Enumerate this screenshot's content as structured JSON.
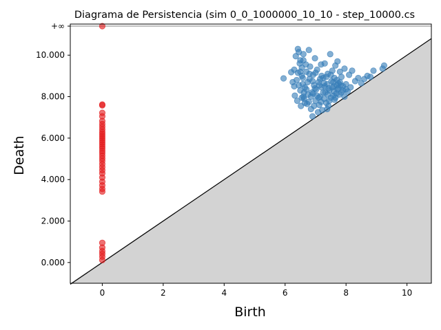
{
  "chart_data": {
    "type": "scatter",
    "title": "Diagrama de Persistencia (sim 0_0_1000000_10_10 - step_10000.cs",
    "xlabel": "Birth",
    "ylabel": "Death",
    "xlim": [
      -1.05,
      10.8
    ],
    "ylim": [
      -1.0,
      11.5
    ],
    "infinity_value": 11.4,
    "infinity_label": "+∞",
    "x_ticks": [
      0,
      2,
      4,
      6,
      8,
      10
    ],
    "x_tick_labels": [
      "0",
      "2",
      "4",
      "6",
      "8",
      "10"
    ],
    "y_ticks": [
      0,
      2,
      4,
      6,
      8,
      10
    ],
    "y_tick_labels": [
      "0.000",
      "2.000",
      "4.000",
      "6.000",
      "8.000",
      "10.000"
    ],
    "colors": {
      "h0": "#e41a1c",
      "h1": "#377eb8",
      "diagonal_fill": "#d3d3d3",
      "diagonal_line": "#000000",
      "infinity_line": "#808080"
    },
    "grid": false,
    "legend": "none",
    "series": [
      {
        "color": "#e41a1c",
        "points": [
          {
            "x": 0.0,
            "y": 0.12
          },
          {
            "x": 0.0,
            "y": 0.28
          },
          {
            "x": 0.0,
            "y": 0.42
          },
          {
            "x": 0.0,
            "y": 0.55
          },
          {
            "x": 0.0,
            "y": 0.72
          },
          {
            "x": 0.0,
            "y": 0.95
          },
          {
            "x": 0.0,
            "y": 3.42
          },
          {
            "x": 0.0,
            "y": 3.55
          },
          {
            "x": 0.0,
            "y": 3.72
          },
          {
            "x": 0.0,
            "y": 3.9
          },
          {
            "x": 0.0,
            "y": 4.1
          },
          {
            "x": 0.0,
            "y": 4.3
          },
          {
            "x": 0.0,
            "y": 4.45
          },
          {
            "x": 0.0,
            "y": 4.6
          },
          {
            "x": 0.0,
            "y": 4.75
          },
          {
            "x": 0.0,
            "y": 4.9
          },
          {
            "x": 0.0,
            "y": 5.02
          },
          {
            "x": 0.0,
            "y": 5.15
          },
          {
            "x": 0.0,
            "y": 5.27
          },
          {
            "x": 0.0,
            "y": 5.38
          },
          {
            "x": 0.0,
            "y": 5.5
          },
          {
            "x": 0.0,
            "y": 5.6
          },
          {
            "x": 0.0,
            "y": 5.7
          },
          {
            "x": 0.0,
            "y": 5.8
          },
          {
            "x": 0.0,
            "y": 5.9
          },
          {
            "x": 0.0,
            "y": 6.0
          },
          {
            "x": 0.0,
            "y": 6.1
          },
          {
            "x": 0.0,
            "y": 6.2
          },
          {
            "x": 0.0,
            "y": 6.3
          },
          {
            "x": 0.0,
            "y": 6.42
          },
          {
            "x": 0.0,
            "y": 6.55
          },
          {
            "x": 0.0,
            "y": 6.68
          },
          {
            "x": 0.0,
            "y": 6.82
          },
          {
            "x": 0.0,
            "y": 7.05
          },
          {
            "x": 0.0,
            "y": 7.22
          },
          {
            "x": 0.0,
            "y": 7.58
          },
          {
            "x": 0.0,
            "y": 7.62
          },
          {
            "x": 0.0,
            "y": 11.4
          }
        ]
      },
      {
        "color": "#377eb8",
        "points": [
          {
            "x": 5.95,
            "y": 8.88
          },
          {
            "x": 6.2,
            "y": 9.18
          },
          {
            "x": 6.25,
            "y": 8.7
          },
          {
            "x": 6.3,
            "y": 9.3
          },
          {
            "x": 6.32,
            "y": 8.05
          },
          {
            "x": 6.35,
            "y": 9.95
          },
          {
            "x": 6.4,
            "y": 7.8
          },
          {
            "x": 6.42,
            "y": 10.3
          },
          {
            "x": 6.45,
            "y": 10.15
          },
          {
            "x": 6.48,
            "y": 9.6
          },
          {
            "x": 6.5,
            "y": 8.3
          },
          {
            "x": 6.52,
            "y": 7.55
          },
          {
            "x": 6.55,
            "y": 9.0
          },
          {
            "x": 6.58,
            "y": 8.6
          },
          {
            "x": 6.6,
            "y": 9.75
          },
          {
            "x": 6.62,
            "y": 7.9
          },
          {
            "x": 6.65,
            "y": 8.45
          },
          {
            "x": 6.7,
            "y": 9.2
          },
          {
            "x": 6.72,
            "y": 7.65
          },
          {
            "x": 6.75,
            "y": 8.1
          },
          {
            "x": 6.78,
            "y": 10.25
          },
          {
            "x": 6.8,
            "y": 8.85
          },
          {
            "x": 6.82,
            "y": 9.45
          },
          {
            "x": 6.85,
            "y": 7.4
          },
          {
            "x": 6.88,
            "y": 8.2
          },
          {
            "x": 6.9,
            "y": 7.05
          },
          {
            "x": 6.92,
            "y": 9.05
          },
          {
            "x": 6.95,
            "y": 8.55
          },
          {
            "x": 6.98,
            "y": 9.85
          },
          {
            "x": 7.0,
            "y": 7.8
          },
          {
            "x": 7.02,
            "y": 8.35
          },
          {
            "x": 7.05,
            "y": 9.3
          },
          {
            "x": 7.08,
            "y": 7.25
          },
          {
            "x": 7.1,
            "y": 8.7
          },
          {
            "x": 7.12,
            "y": 7.6
          },
          {
            "x": 7.15,
            "y": 8.0
          },
          {
            "x": 7.18,
            "y": 9.55
          },
          {
            "x": 7.2,
            "y": 8.45
          },
          {
            "x": 7.22,
            "y": 7.35
          },
          {
            "x": 7.25,
            "y": 8.9
          },
          {
            "x": 7.28,
            "y": 7.9
          },
          {
            "x": 7.3,
            "y": 9.6
          },
          {
            "x": 7.32,
            "y": 8.2
          },
          {
            "x": 7.35,
            "y": 7.7
          },
          {
            "x": 7.38,
            "y": 8.6
          },
          {
            "x": 7.4,
            "y": 9.1
          },
          {
            "x": 7.42,
            "y": 7.55
          },
          {
            "x": 7.45,
            "y": 8.3
          },
          {
            "x": 7.48,
            "y": 10.05
          },
          {
            "x": 7.5,
            "y": 7.95
          },
          {
            "x": 7.52,
            "y": 8.75
          },
          {
            "x": 7.55,
            "y": 9.25
          },
          {
            "x": 7.58,
            "y": 8.05
          },
          {
            "x": 7.6,
            "y": 8.5
          },
          {
            "x": 7.62,
            "y": 7.85
          },
          {
            "x": 7.65,
            "y": 9.5
          },
          {
            "x": 7.68,
            "y": 8.15
          },
          {
            "x": 7.7,
            "y": 8.8
          },
          {
            "x": 7.72,
            "y": 9.7
          },
          {
            "x": 7.75,
            "y": 8.4
          },
          {
            "x": 7.78,
            "y": 8.1
          },
          {
            "x": 7.8,
            "y": 9.2
          },
          {
            "x": 7.82,
            "y": 8.55
          },
          {
            "x": 7.85,
            "y": 8.95
          },
          {
            "x": 7.9,
            "y": 8.3
          },
          {
            "x": 7.95,
            "y": 9.35
          },
          {
            "x": 8.0,
            "y": 8.6
          },
          {
            "x": 8.05,
            "y": 8.25
          },
          {
            "x": 8.1,
            "y": 9.05
          },
          {
            "x": 8.15,
            "y": 8.45
          },
          {
            "x": 8.2,
            "y": 9.25
          },
          {
            "x": 8.3,
            "y": 8.75
          },
          {
            "x": 8.4,
            "y": 8.9
          },
          {
            "x": 8.5,
            "y": 8.65
          },
          {
            "x": 8.6,
            "y": 8.85
          },
          {
            "x": 8.7,
            "y": 9.0
          },
          {
            "x": 8.8,
            "y": 8.95
          },
          {
            "x": 8.9,
            "y": 9.25
          },
          {
            "x": 9.2,
            "y": 9.35
          },
          {
            "x": 9.25,
            "y": 9.5
          },
          {
            "x": 6.55,
            "y": 9.4
          },
          {
            "x": 6.6,
            "y": 8.0
          },
          {
            "x": 6.68,
            "y": 9.55
          },
          {
            "x": 6.74,
            "y": 8.7
          },
          {
            "x": 6.85,
            "y": 8.0
          },
          {
            "x": 6.95,
            "y": 7.55
          },
          {
            "x": 7.05,
            "y": 8.05
          },
          {
            "x": 7.15,
            "y": 8.85
          },
          {
            "x": 7.25,
            "y": 8.2
          },
          {
            "x": 7.35,
            "y": 8.95
          },
          {
            "x": 7.45,
            "y": 7.8
          },
          {
            "x": 7.55,
            "y": 8.45
          },
          {
            "x": 7.65,
            "y": 7.95
          },
          {
            "x": 7.75,
            "y": 8.65
          },
          {
            "x": 7.85,
            "y": 8.2
          },
          {
            "x": 6.45,
            "y": 8.55
          },
          {
            "x": 6.58,
            "y": 8.9
          },
          {
            "x": 6.7,
            "y": 8.35
          },
          {
            "x": 6.78,
            "y": 7.75
          },
          {
            "x": 6.9,
            "y": 8.75
          },
          {
            "x": 7.0,
            "y": 9.15
          },
          {
            "x": 7.1,
            "y": 7.95
          },
          {
            "x": 7.2,
            "y": 9.0
          },
          {
            "x": 7.3,
            "y": 8.5
          },
          {
            "x": 7.4,
            "y": 8.1
          },
          {
            "x": 7.5,
            "y": 9.05
          },
          {
            "x": 7.6,
            "y": 8.25
          },
          {
            "x": 7.7,
            "y": 8.55
          },
          {
            "x": 7.8,
            "y": 8.7
          },
          {
            "x": 7.9,
            "y": 8.5
          },
          {
            "x": 8.0,
            "y": 8.35
          },
          {
            "x": 6.5,
            "y": 9.2
          },
          {
            "x": 6.62,
            "y": 8.2
          },
          {
            "x": 6.8,
            "y": 9.1
          },
          {
            "x": 6.98,
            "y": 8.4
          },
          {
            "x": 7.12,
            "y": 8.55
          },
          {
            "x": 7.28,
            "y": 8.65
          },
          {
            "x": 7.42,
            "y": 8.4
          },
          {
            "x": 7.58,
            "y": 8.7
          },
          {
            "x": 7.72,
            "y": 8.35
          },
          {
            "x": 6.38,
            "y": 8.8
          },
          {
            "x": 6.65,
            "y": 7.7
          },
          {
            "x": 6.92,
            "y": 8.15
          },
          {
            "x": 7.18,
            "y": 7.75
          },
          {
            "x": 7.38,
            "y": 7.4
          },
          {
            "x": 7.62,
            "y": 8.9
          },
          {
            "x": 6.5,
            "y": 9.75
          },
          {
            "x": 6.6,
            "y": 10.05
          },
          {
            "x": 6.3,
            "y": 8.5
          },
          {
            "x": 6.42,
            "y": 9.15
          },
          {
            "x": 6.55,
            "y": 7.95
          },
          {
            "x": 7.95,
            "y": 8.0
          }
        ]
      }
    ]
  }
}
